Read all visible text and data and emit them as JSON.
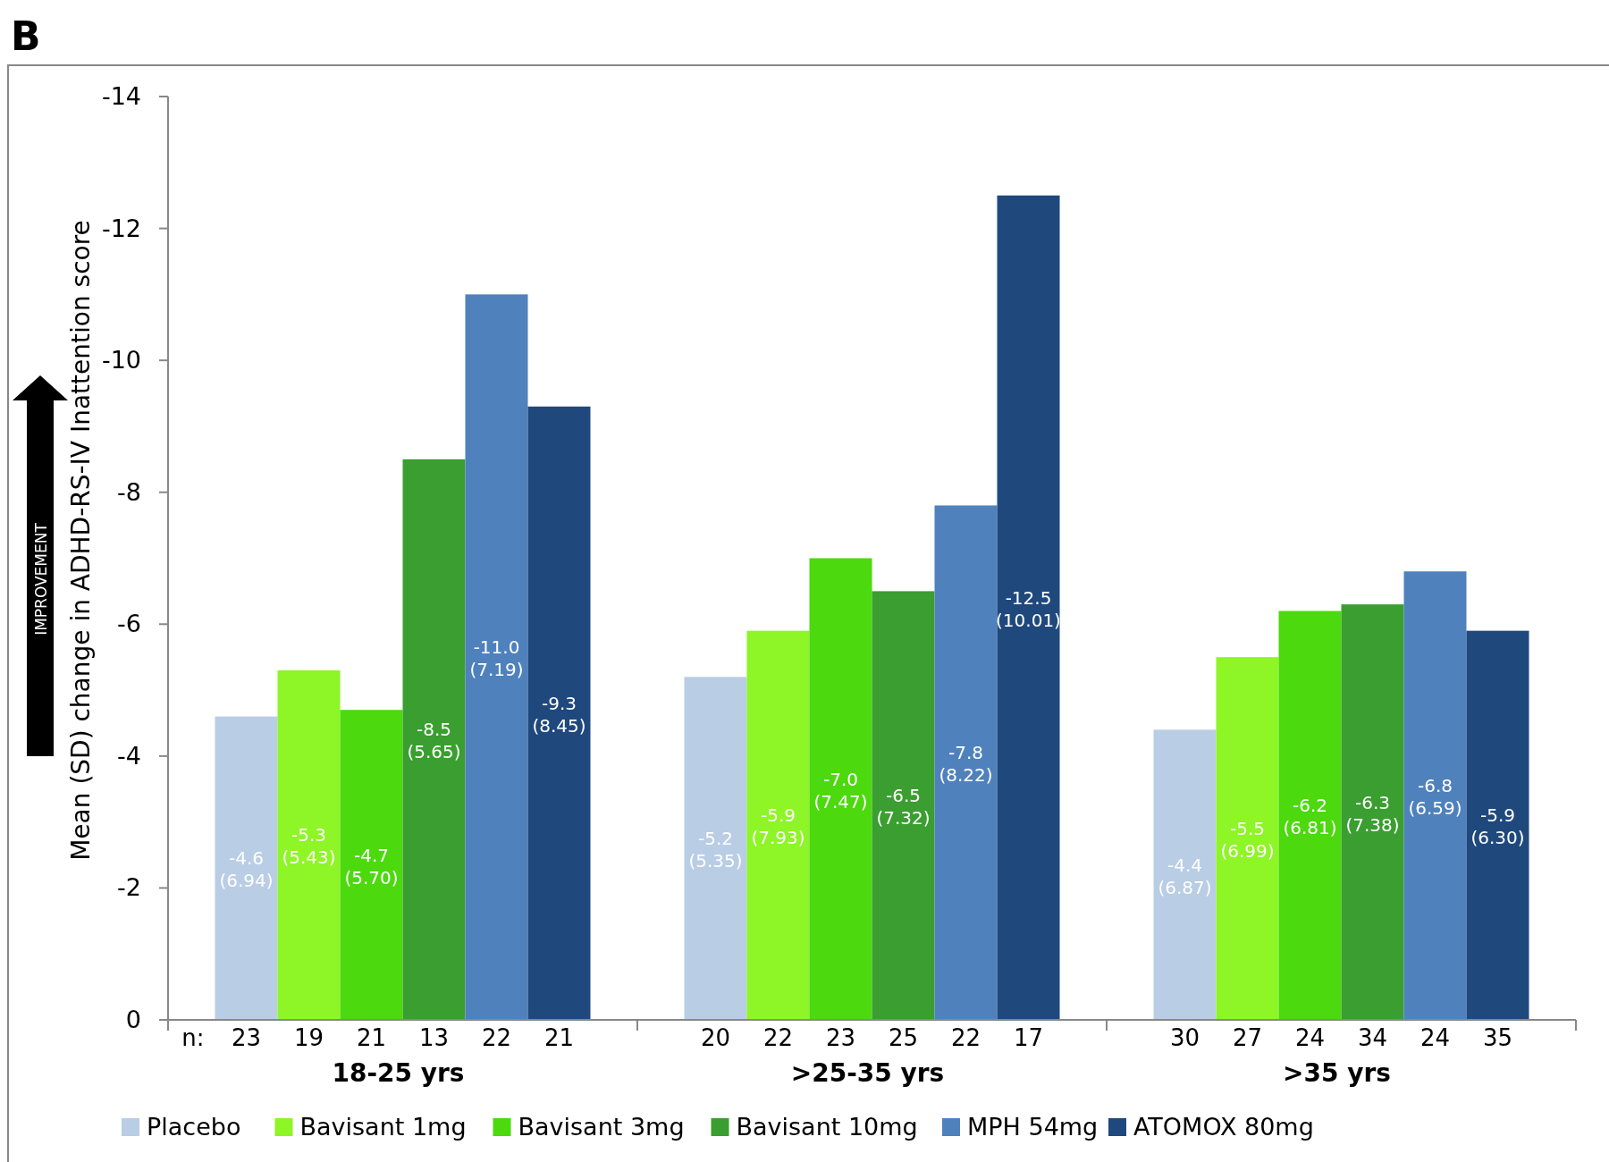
{
  "chart_data": {
    "type": "bar",
    "title": "B",
    "ylabel": "Mean (SD) change in ADHD-RS-IV Inattention score",
    "categories": [
      "18-25 yrs",
      ">25-35 yrs",
      ">35 yrs"
    ],
    "series": [
      {
        "name": "Placebo",
        "color": "#b9cde5",
        "values": [
          -4.6,
          -5.2,
          -4.4
        ],
        "value_labels": [
          "-4.6 (6.94)",
          "-5.2 (5.35)",
          "-4.4 (6.87)"
        ]
      },
      {
        "name": "Bavisant 1mg",
        "color": "#8ef526",
        "values": [
          -5.3,
          -5.9,
          -5.5
        ],
        "value_labels": [
          "-5.3 (5.43)",
          "-5.9 (7.93)",
          "-5.5 (6.99)"
        ]
      },
      {
        "name": "Bavisant 3mg",
        "color": "#4cd90e",
        "values": [
          -4.7,
          -7.0,
          -6.2
        ],
        "value_labels": [
          "-4.7 (5.70)",
          "-7.0 (7.47)",
          "-6.2 (6.81)"
        ]
      },
      {
        "name": "Bavisant 10mg",
        "color": "#3a9e30",
        "values": [
          -8.5,
          -6.5,
          -6.3
        ],
        "value_labels": [
          "-8.5 (5.65)",
          "-6.5 (7.32)",
          "-6.3 (7.38)"
        ]
      },
      {
        "name": "MPH 54mg",
        "color": "#4f81bd",
        "values": [
          -11.0,
          -7.8,
          -6.8
        ],
        "value_labels": [
          "-11.0 (7.19)",
          "-7.8 (8.22)",
          "-6.8 (6.59)"
        ]
      },
      {
        "name": "ATOMOX 80mg",
        "color": "#1f497d",
        "values": [
          -9.3,
          -12.5,
          -5.9
        ],
        "value_labels": [
          "-9.3 (8.45)",
          "-12.5 (10.01)",
          "-5.9 (6.30)"
        ]
      }
    ],
    "ylim": [
      0,
      -14
    ],
    "yticks": [
      0,
      -2,
      -4,
      -6,
      -8,
      -10,
      -12,
      -14
    ],
    "grid": false,
    "legend": "bottom",
    "annotations": [
      "n:",
      "IMPROVEMENT",
      "23",
      "19",
      "21",
      "13",
      "22",
      "21",
      "20",
      "22",
      "23",
      "25",
      "22",
      "17",
      "30",
      "27",
      "24",
      "34",
      "24",
      "35"
    ]
  }
}
